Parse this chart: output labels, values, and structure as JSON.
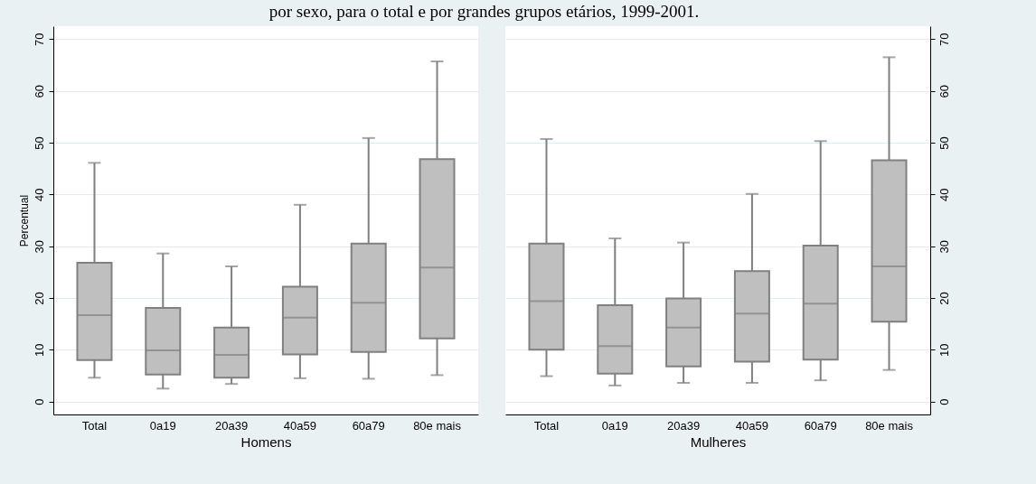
{
  "chart_data": [
    {
      "type": "box",
      "title": "por sexo, para o total e por grandes grupos etários, 1999-2001.",
      "xlabel": "Homens",
      "ylabel": "Percentual",
      "categories": [
        "Total",
        "0a19",
        "20a39",
        "40a59",
        "60a79",
        "80e mais"
      ],
      "ylim": [
        -2.5,
        72.5
      ],
      "yticks": [
        0,
        10,
        20,
        30,
        40,
        50,
        60,
        70
      ],
      "grid": "y",
      "color": "#bfbfbf",
      "boxes": [
        {
          "low": 4.6,
          "q1": 8.0,
          "median": 16.7,
          "q3": 26.8,
          "high": 46.1
        },
        {
          "low": 2.5,
          "q1": 5.2,
          "median": 9.9,
          "q3": 18.1,
          "high": 28.6
        },
        {
          "low": 3.4,
          "q1": 4.6,
          "median": 9.0,
          "q3": 14.3,
          "high": 26.1
        },
        {
          "low": 4.5,
          "q1": 9.1,
          "median": 16.2,
          "q3": 22.2,
          "high": 38.0
        },
        {
          "low": 4.4,
          "q1": 9.6,
          "median": 19.1,
          "q3": 30.5,
          "high": 50.9
        },
        {
          "low": 5.1,
          "q1": 12.2,
          "median": 25.9,
          "q3": 46.8,
          "high": 65.7
        }
      ]
    },
    {
      "type": "box",
      "xlabel": "Mulheres",
      "categories": [
        "Total",
        "0a19",
        "20a39",
        "40a59",
        "60a79",
        "80e mais"
      ],
      "ylim": [
        -2.5,
        72.5
      ],
      "yticks": [
        0,
        10,
        20,
        30,
        40,
        50,
        60,
        70
      ],
      "grid": "y",
      "color": "#bfbfbf",
      "boxes": [
        {
          "low": 4.9,
          "q1": 10.0,
          "median": 19.4,
          "q3": 30.5,
          "high": 50.7
        },
        {
          "low": 3.1,
          "q1": 5.4,
          "median": 10.7,
          "q3": 18.6,
          "high": 31.5
        },
        {
          "low": 3.6,
          "q1": 6.8,
          "median": 14.3,
          "q3": 19.9,
          "high": 30.7
        },
        {
          "low": 3.6,
          "q1": 7.7,
          "median": 17.0,
          "q3": 25.2,
          "high": 40.1
        },
        {
          "low": 4.1,
          "q1": 8.1,
          "median": 18.9,
          "q3": 30.1,
          "high": 50.3
        },
        {
          "low": 6.1,
          "q1": 15.4,
          "median": 26.1,
          "q3": 46.6,
          "high": 66.5
        }
      ]
    }
  ]
}
